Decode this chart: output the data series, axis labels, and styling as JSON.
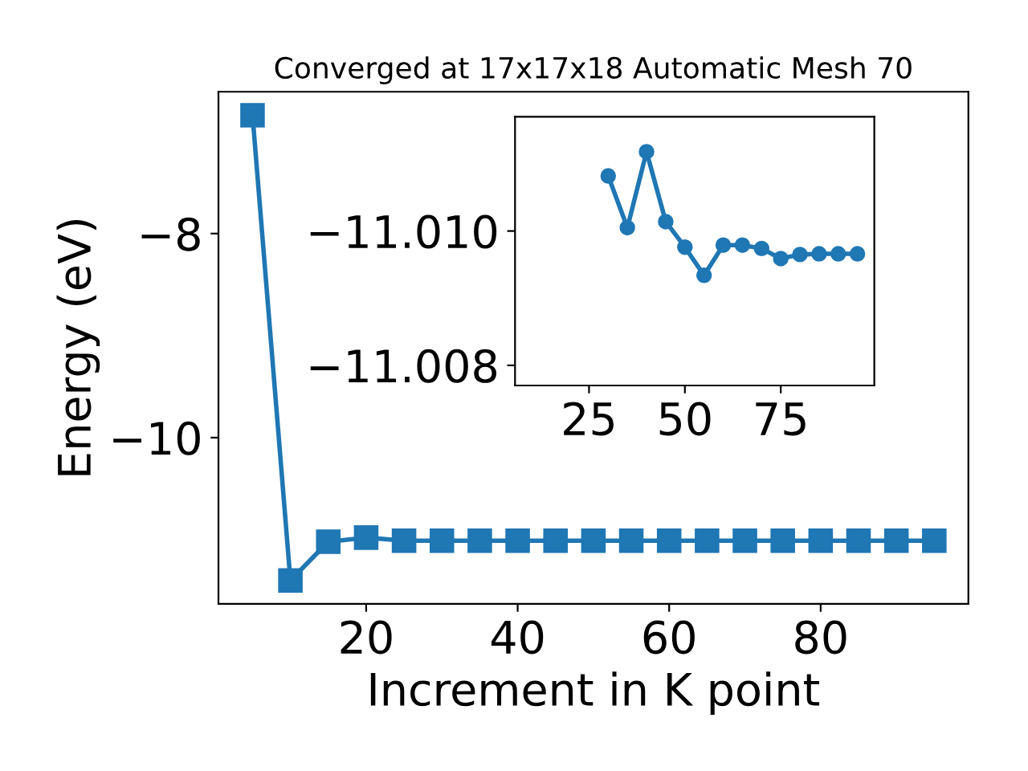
{
  "chart_data": [
    {
      "type": "line",
      "title": "Converged at 17x17x18 Automatic Mesh 70",
      "xlabel": "Increment in K point",
      "ylabel": "Energy (eV)",
      "marker": "square",
      "line_style": "solid",
      "grid": false,
      "legend": false,
      "x": [
        5,
        10,
        15,
        20,
        25,
        30,
        35,
        40,
        45,
        50,
        55,
        60,
        65,
        70,
        75,
        80,
        85,
        90,
        95
      ],
      "series": [
        {
          "color": "#1f77b4",
          "values": [
            -6.84,
            -11.4,
            -11.02,
            -10.98,
            -11.01,
            -11.01,
            -11.01,
            -11.01,
            -11.01,
            -11.01,
            -11.01,
            -11.01,
            -11.01,
            -11.01,
            -11.01,
            -11.01,
            -11.01,
            -11.01,
            -11.01
          ]
        }
      ],
      "xlim": [
        0.5,
        99.5
      ],
      "ylim": [
        -11.63,
        -6.61
      ],
      "xticks": [
        20,
        40,
        60,
        80
      ],
      "yticks": [
        {
          "value": -8,
          "label": "−8"
        },
        {
          "value": -10,
          "label": "−10"
        }
      ]
    },
    {
      "type": "line",
      "marker": "circle",
      "line_style": "solid",
      "grid": false,
      "legend": false,
      "x": [
        30,
        35,
        40,
        45,
        50,
        55,
        60,
        65,
        70,
        75,
        80,
        85,
        90,
        95
      ],
      "series": [
        {
          "color": "#1f77b4",
          "values": [
            -11.01082,
            -11.01005,
            -11.01118,
            -11.01014,
            -11.00976,
            -11.00934,
            -11.00979,
            -11.00979,
            -11.00974,
            -11.00959,
            -11.00965,
            -11.00966,
            -11.00966,
            -11.00966
          ]
        }
      ],
      "xlim": [
        5.7,
        99.4
      ],
      "ylim": [
        -11.0077,
        -11.0117
      ],
      "xticks": [
        25,
        50,
        75
      ],
      "yticks": [
        {
          "value": -11.01,
          "label": "−11.010"
        },
        {
          "value": -11.008,
          "label": "−11.008"
        }
      ]
    }
  ]
}
